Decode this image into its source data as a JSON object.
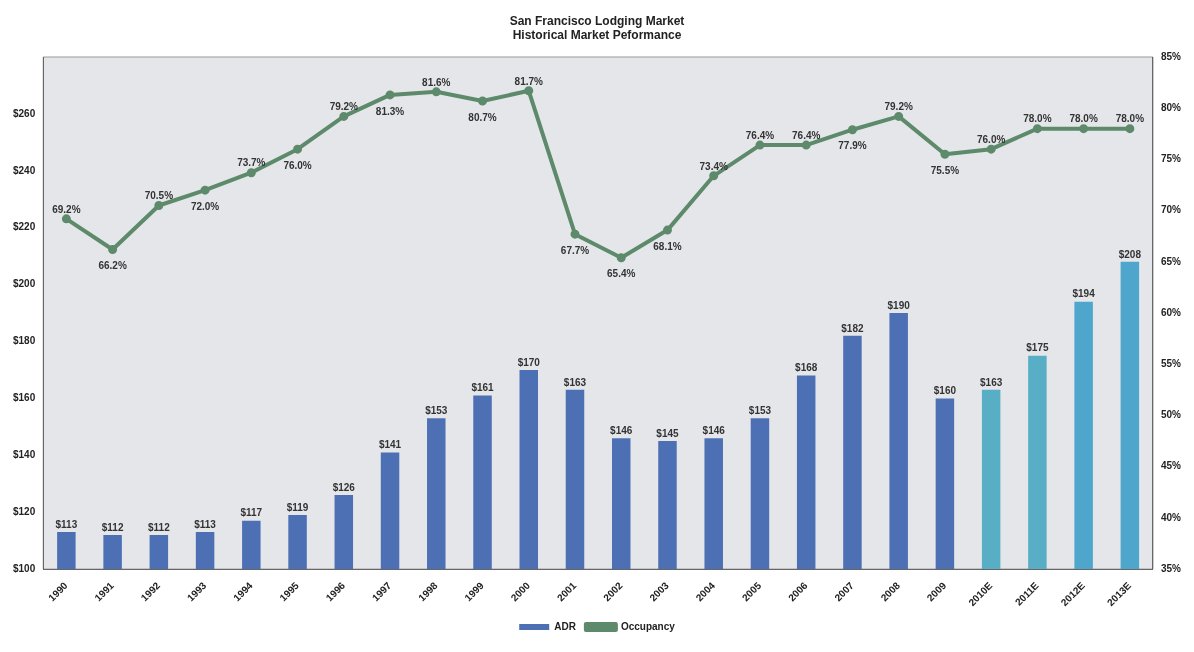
{
  "chart_data": {
    "type": "bar",
    "title": "San Francisco Lodging Market",
    "subtitle": "Historical Market Peformance",
    "categories": [
      "1990",
      "1991",
      "1992",
      "1993",
      "1994",
      "1995",
      "1996",
      "1997",
      "1998",
      "1999",
      "2000",
      "2001",
      "2002",
      "2003",
      "2004",
      "2005",
      "2006",
      "2007",
      "2008",
      "2009",
      "2010E",
      "2011E",
      "2012E",
      "2013E"
    ],
    "series": [
      {
        "name": "ADR",
        "colors": [
          "#4d70b4",
          "#4d70b4",
          "#4d70b4",
          "#4d70b4",
          "#4d70b4",
          "#4d70b4",
          "#4d70b4",
          "#4d70b4",
          "#4d70b4",
          "#4d70b4",
          "#4d70b4",
          "#4d70b4",
          "#4d70b4",
          "#4d70b4",
          "#4d70b4",
          "#4d70b4",
          "#4d70b4",
          "#4d70b4",
          "#4d70b4",
          "#4d70b4",
          "#58aec4",
          "#58aec4",
          "#4fa6cc",
          "#4fa6cc"
        ],
        "values": [
          113,
          112,
          112,
          113,
          117,
          119,
          126,
          141,
          153,
          161,
          170,
          163,
          146,
          145,
          146,
          153,
          168,
          182,
          190,
          160,
          163,
          175,
          194,
          208
        ],
        "value_labels": [
          "$113",
          "$112",
          "$112",
          "$113",
          "$117",
          "$119",
          "$126",
          "$141",
          "$153",
          "$161",
          "$170",
          "$163",
          "$146",
          "$145",
          "$146",
          "$153",
          "$168",
          "$182",
          "$190",
          "$160",
          "$163",
          "$175",
          "$194",
          "$208"
        ]
      },
      {
        "name": "Occupancy",
        "type": "line",
        "axis": "y2",
        "color": "#5e8a6c",
        "values": [
          69.2,
          66.2,
          70.5,
          72.0,
          73.7,
          76.0,
          79.2,
          81.3,
          81.6,
          80.7,
          81.7,
          67.7,
          65.4,
          68.1,
          73.4,
          76.4,
          76.4,
          77.9,
          79.2,
          75.5,
          76.0,
          78.0,
          78.0,
          78.0
        ],
        "value_labels": [
          "69.2%",
          "66.2%",
          "70.5%",
          "72.0%",
          "73.7%",
          "76.0%",
          "79.2%",
          "81.3%",
          "81.6%",
          "80.7%",
          "81.7%",
          "67.7%",
          "65.4%",
          "68.1%",
          "73.4%",
          "76.4%",
          "76.4%",
          "77.9%",
          "79.2%",
          "75.5%",
          "76.0%",
          "78.0%",
          "78.0%",
          "78.0%"
        ]
      }
    ],
    "ylim": [
      100,
      280
    ],
    "yticks": [
      {
        "value": 100,
        "label": "$100"
      },
      {
        "value": 120,
        "label": "$120"
      },
      {
        "value": 140,
        "label": "$140"
      },
      {
        "value": 160,
        "label": "$160"
      },
      {
        "value": 180,
        "label": "$180"
      },
      {
        "value": 200,
        "label": "$200"
      },
      {
        "value": 220,
        "label": "$220"
      },
      {
        "value": 240,
        "label": "$240"
      },
      {
        "value": 260,
        "label": "$260"
      }
    ],
    "y2lim": [
      35,
      85
    ],
    "y2ticks": [
      {
        "value": 35,
        "label": "35%"
      },
      {
        "value": 40,
        "label": "40%"
      },
      {
        "value": 45,
        "label": "45%"
      },
      {
        "value": 50,
        "label": "50%"
      },
      {
        "value": 55,
        "label": "55%"
      },
      {
        "value": 60,
        "label": "60%"
      },
      {
        "value": 65,
        "label": "65%"
      },
      {
        "value": 70,
        "label": "70%"
      },
      {
        "value": 75,
        "label": "75%"
      },
      {
        "value": 80,
        "label": "80%"
      },
      {
        "value": 85,
        "label": "85%"
      }
    ],
    "grid": false,
    "legend": "bottom",
    "marker": "circle",
    "line_style": "solid"
  }
}
